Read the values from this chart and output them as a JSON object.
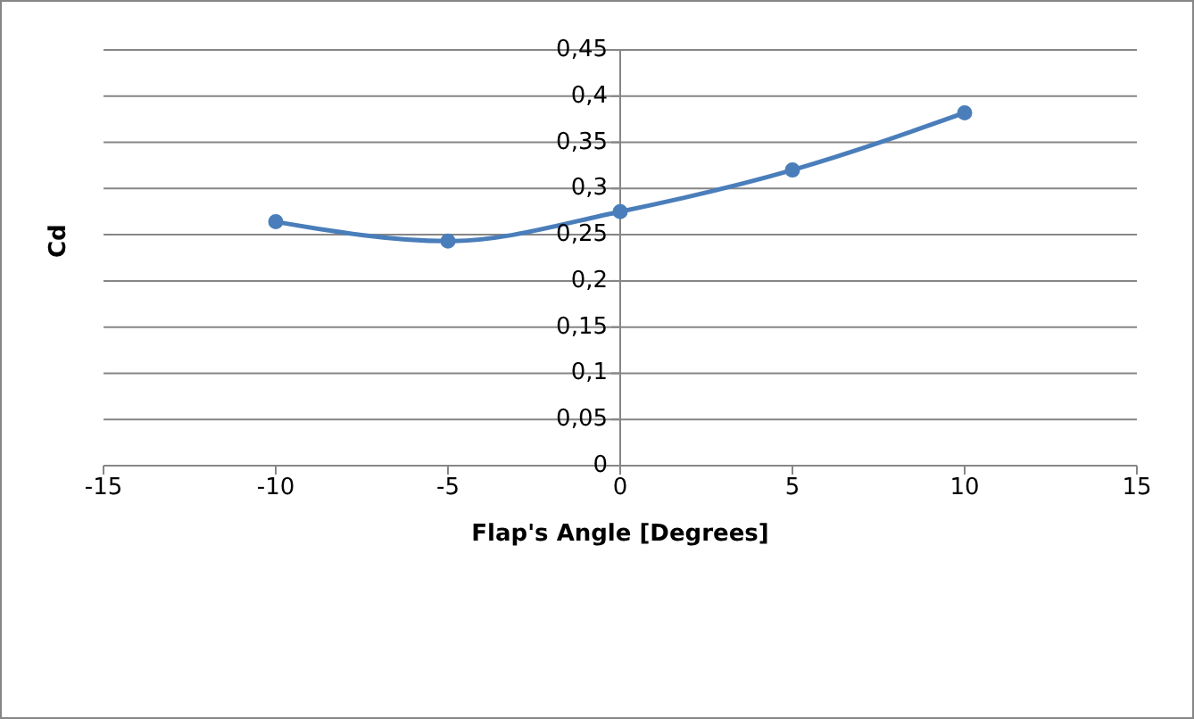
{
  "chart_data": {
    "type": "line",
    "xlabel": "Flap's Angle [Degrees]",
    "ylabel": "Cd",
    "x": [
      -10,
      -5,
      0,
      5,
      10
    ],
    "series": [
      {
        "color": "#4a7ebb",
        "values": [
          0.264,
          0.243,
          0.275,
          0.32,
          0.382
        ]
      }
    ],
    "xlim": [
      -15,
      15
    ],
    "xticks": [
      -15,
      -10,
      -5,
      0,
      5,
      10,
      15
    ],
    "ylim": [
      0,
      0.45
    ],
    "yticks": [
      {
        "value": 0,
        "label": "0"
      },
      {
        "value": 0.05,
        "label": "0,05"
      },
      {
        "value": 0.1,
        "label": "0,1"
      },
      {
        "value": 0.15,
        "label": "0,15"
      },
      {
        "value": 0.2,
        "label": "0,2"
      },
      {
        "value": 0.25,
        "label": "0,25"
      },
      {
        "value": 0.3,
        "label": "0,3"
      },
      {
        "value": 0.35,
        "label": "0,35"
      },
      {
        "value": 0.4,
        "label": "0,4"
      },
      {
        "value": 0.45,
        "label": "0,45"
      }
    ],
    "grid": "y",
    "legend": false,
    "marker": "circle",
    "line_style": "solid"
  }
}
